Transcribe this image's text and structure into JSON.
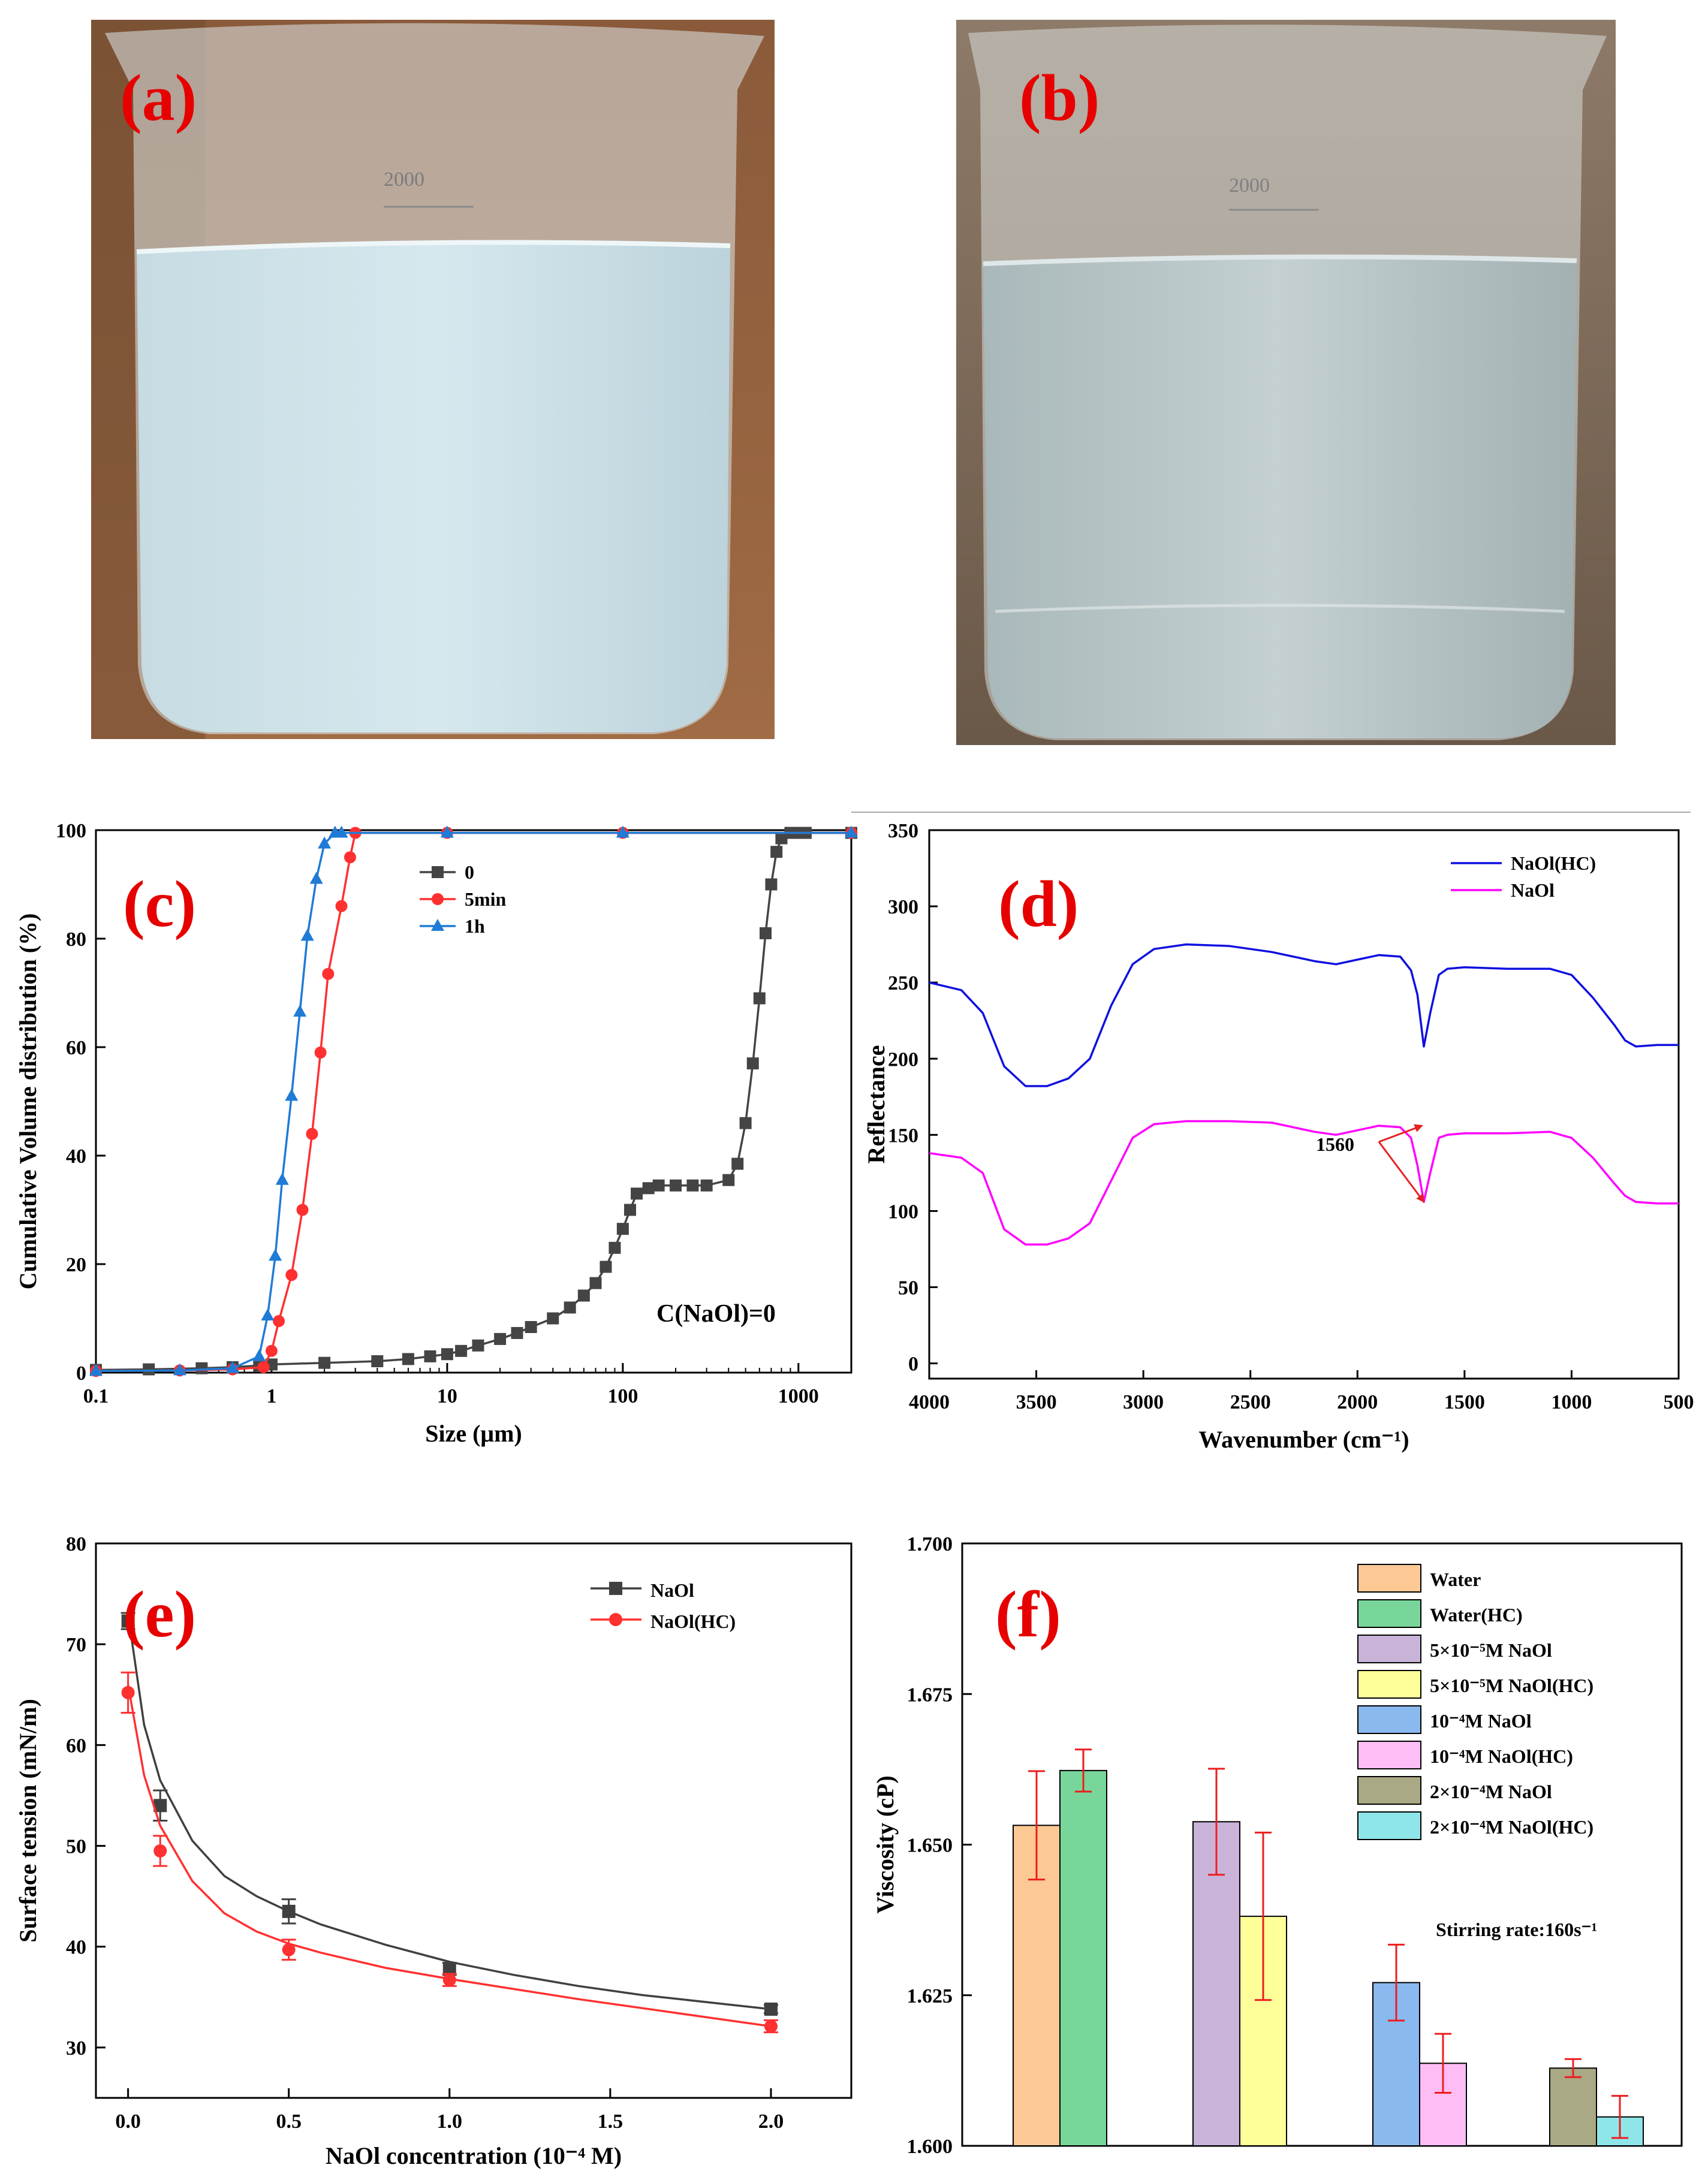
{
  "photos": [
    {
      "label": "(a)",
      "description_color": "#c9dfe6"
    },
    {
      "label": "(b)",
      "description_color": "#b7c5c7"
    }
  ],
  "photo_text": {
    "beaker_mark": "2000"
  },
  "chart_data": [
    {
      "id": "c",
      "label": "(c)",
      "type": "line",
      "xscale": "log",
      "xlabel": "Size (μm)",
      "ylabel": "Cumulative Volume distribution (%)",
      "xlim": [
        0.1,
        2000
      ],
      "ylim": [
        0,
        100
      ],
      "xticks": [
        0.1,
        1,
        10,
        100,
        1000
      ],
      "xtick_labels": [
        "0.1",
        "1",
        "10",
        "100",
        "1000"
      ],
      "yticks": [
        0,
        20,
        40,
        60,
        80,
        100
      ],
      "annotation": "C(NaOl)=0",
      "series": [
        {
          "name": "0",
          "color": "#444444",
          "marker": "square",
          "x": [
            0.1,
            0.2,
            0.4,
            0.6,
            0.85,
            1,
            2,
            4,
            6,
            8,
            10,
            12,
            15,
            20,
            25,
            30,
            40,
            50,
            60,
            70,
            80,
            90,
            100,
            110,
            120,
            140,
            160,
            200,
            250,
            300,
            400,
            450,
            500,
            550,
            600,
            650,
            700,
            750,
            800,
            900,
            1000,
            1100,
            2000
          ],
          "y": [
            0.5,
            0.6,
            0.8,
            1.0,
            1.3,
            1.5,
            1.8,
            2.1,
            2.5,
            3.0,
            3.4,
            4.0,
            5.0,
            6.2,
            7.3,
            8.4,
            10.0,
            12.0,
            14.2,
            16.5,
            19.5,
            23.0,
            26.5,
            30.0,
            33.0,
            34.0,
            34.5,
            34.5,
            34.5,
            34.5,
            35.5,
            38.5,
            46.0,
            57.0,
            69.0,
            81.0,
            90.0,
            96.0,
            98.5,
            99.5,
            99.5,
            99.5,
            99.5
          ]
        },
        {
          "name": "5min",
          "color": "#ff3030",
          "marker": "circle",
          "x": [
            0.1,
            0.3,
            0.6,
            0.9,
            1.0,
            1.1,
            1.3,
            1.5,
            1.7,
            1.9,
            2.1,
            2.5,
            2.8,
            3.0,
            10,
            100,
            2000
          ],
          "y": [
            0.3,
            0.4,
            0.6,
            1.0,
            4.0,
            9.5,
            18.0,
            30.0,
            44.0,
            59.0,
            73.5,
            86.0,
            95.0,
            99.5,
            99.5,
            99.5,
            99.5
          ]
        },
        {
          "name": "1h",
          "color": "#1f7bd6",
          "marker": "triangle",
          "x": [
            0.1,
            0.3,
            0.6,
            0.85,
            0.95,
            1.05,
            1.15,
            1.3,
            1.45,
            1.6,
            1.8,
            2.0,
            2.3,
            2.5,
            10,
            100,
            2000
          ],
          "y": [
            0.3,
            0.4,
            0.8,
            3.0,
            10.5,
            21.5,
            35.5,
            51.0,
            66.5,
            80.5,
            91.0,
            97.5,
            99.5,
            99.5,
            99.5,
            99.5,
            99.5
          ]
        }
      ]
    },
    {
      "id": "d",
      "label": "(d)",
      "type": "line",
      "xlabel": "Wavenumber (cm⁻¹)",
      "ylabel": "Reflectance",
      "xlim": [
        4000,
        500
      ],
      "ylim": [
        -10,
        350
      ],
      "xticks": [
        4000,
        3500,
        3000,
        2500,
        2000,
        1500,
        1000,
        500
      ],
      "yticks": [
        0,
        50,
        100,
        150,
        200,
        250,
        300,
        350
      ],
      "annotation": "1560",
      "series": [
        {
          "name": "NaOl(HC)",
          "color": "#1010e0",
          "x": [
            4000,
            3850,
            3750,
            3650,
            3550,
            3450,
            3350,
            3250,
            3150,
            3050,
            2950,
            2800,
            2600,
            2400,
            2200,
            2100,
            2000,
            1900,
            1800,
            1750,
            1720,
            1690,
            1660,
            1620,
            1580,
            1500,
            1300,
            1100,
            1000,
            900,
            800,
            750,
            700,
            600,
            500
          ],
          "y": [
            250,
            245,
            230,
            195,
            182,
            182,
            187,
            200,
            235,
            262,
            272,
            275,
            274,
            270,
            264,
            262,
            265,
            268,
            267,
            258,
            242,
            208,
            230,
            255,
            259,
            260,
            259,
            259,
            255,
            240,
            222,
            212,
            208,
            209,
            209
          ]
        },
        {
          "name": "NaOl",
          "color": "#ff00ff",
          "x": [
            4000,
            3850,
            3750,
            3650,
            3550,
            3450,
            3350,
            3250,
            3150,
            3050,
            2950,
            2800,
            2600,
            2400,
            2200,
            2100,
            2000,
            1900,
            1800,
            1750,
            1720,
            1690,
            1660,
            1620,
            1580,
            1500,
            1300,
            1100,
            1000,
            900,
            800,
            750,
            700,
            600,
            500
          ],
          "y": [
            138,
            135,
            125,
            88,
            78,
            78,
            82,
            92,
            120,
            148,
            157,
            159,
            159,
            158,
            152,
            150,
            153,
            156,
            155,
            148,
            130,
            106,
            125,
            148,
            150,
            151,
            151,
            152,
            148,
            135,
            118,
            110,
            106,
            105,
            105
          ]
        }
      ]
    },
    {
      "id": "e",
      "label": "(e)",
      "type": "scatter",
      "xlabel": "NaOl concentration (10⁻⁴ M)",
      "ylabel": "Surface tension (mN/m)",
      "xlim": [
        -0.1,
        2.25
      ],
      "ylim": [
        25,
        80
      ],
      "xticks": [
        0.0,
        0.5,
        1.0,
        1.5,
        2.0
      ],
      "xtick_labels": [
        "0.0",
        "0.5",
        "1.0",
        "1.5",
        "2.0"
      ],
      "yticks": [
        30,
        40,
        50,
        60,
        70,
        80
      ],
      "series": [
        {
          "name": "NaOl",
          "color": "#404040",
          "marker": "square",
          "x": [
            0.0,
            0.1,
            0.5,
            1.0,
            2.0
          ],
          "y": [
            72.3,
            54.0,
            43.5,
            37.8,
            33.8
          ],
          "err": [
            0.8,
            1.5,
            1.2,
            0.6,
            0.4
          ],
          "fit_x": [
            0.0,
            0.05,
            0.1,
            0.2,
            0.3,
            0.4,
            0.5,
            0.6,
            0.8,
            1.0,
            1.2,
            1.4,
            1.6,
            1.8,
            2.0
          ],
          "fit_y": [
            73.0,
            62.0,
            56.5,
            50.5,
            47.0,
            45.0,
            43.5,
            42.2,
            40.2,
            38.5,
            37.2,
            36.1,
            35.2,
            34.5,
            33.8
          ]
        },
        {
          "name": "NaOl(HC)",
          "color": "#ff3030",
          "marker": "circle",
          "x": [
            0.0,
            0.1,
            0.5,
            1.0,
            2.0
          ],
          "y": [
            65.2,
            49.5,
            39.7,
            36.7,
            32.1
          ],
          "err": [
            2.0,
            1.5,
            1.0,
            0.6,
            0.6
          ],
          "fit_x": [
            0.0,
            0.05,
            0.1,
            0.2,
            0.3,
            0.4,
            0.5,
            0.6,
            0.8,
            1.0,
            1.2,
            1.4,
            1.6,
            1.8,
            2.0
          ],
          "fit_y": [
            66.0,
            57.0,
            52.0,
            46.5,
            43.3,
            41.5,
            40.3,
            39.4,
            37.9,
            36.8,
            35.8,
            34.8,
            33.9,
            33.0,
            32.1
          ]
        }
      ]
    },
    {
      "id": "f",
      "label": "(f)",
      "type": "bar",
      "ylabel": "Viscosity (cP)",
      "ylim": [
        1.6,
        1.7
      ],
      "yticks": [
        1.6,
        1.625,
        1.65,
        1.675,
        1.7
      ],
      "ytick_labels": [
        "1.600",
        "1.625",
        "1.650",
        "1.675",
        "1.700"
      ],
      "annotation": "Stirring rate:160s⁻¹",
      "bars": [
        {
          "name": "Water",
          "value": 1.6532,
          "err": 0.009,
          "color": "#fcc994",
          "group": 0
        },
        {
          "name": "Water(HC)",
          "value": 1.6623,
          "err": 0.0035,
          "color": "#78d69a",
          "group": 0
        },
        {
          "name": "5×10⁻⁵M NaOl",
          "value": 1.6538,
          "err": 0.0088,
          "color": "#c9b3d9",
          "group": 1
        },
        {
          "name": "5×10⁻⁵M NaOl(HC)",
          "value": 1.6381,
          "err": 0.0139,
          "color": "#ffff9a",
          "group": 1
        },
        {
          "name": "10⁻⁴M NaOl",
          "value": 1.6271,
          "err": 0.0063,
          "color": "#8ab9ef",
          "group": 2
        },
        {
          "name": "10⁻⁴M NaOl(HC)",
          "value": 1.6137,
          "err": 0.0049,
          "color": "#ffbdf5",
          "group": 2
        },
        {
          "name": "2×10⁻⁴M NaOl",
          "value": 1.6129,
          "err": 0.0015,
          "color": "#aaa985",
          "group": 3
        },
        {
          "name": "2×10⁻⁴M NaOl(HC)",
          "value": 1.6048,
          "err": 0.0035,
          "color": "#8fe6e9",
          "group": 3
        }
      ]
    }
  ]
}
